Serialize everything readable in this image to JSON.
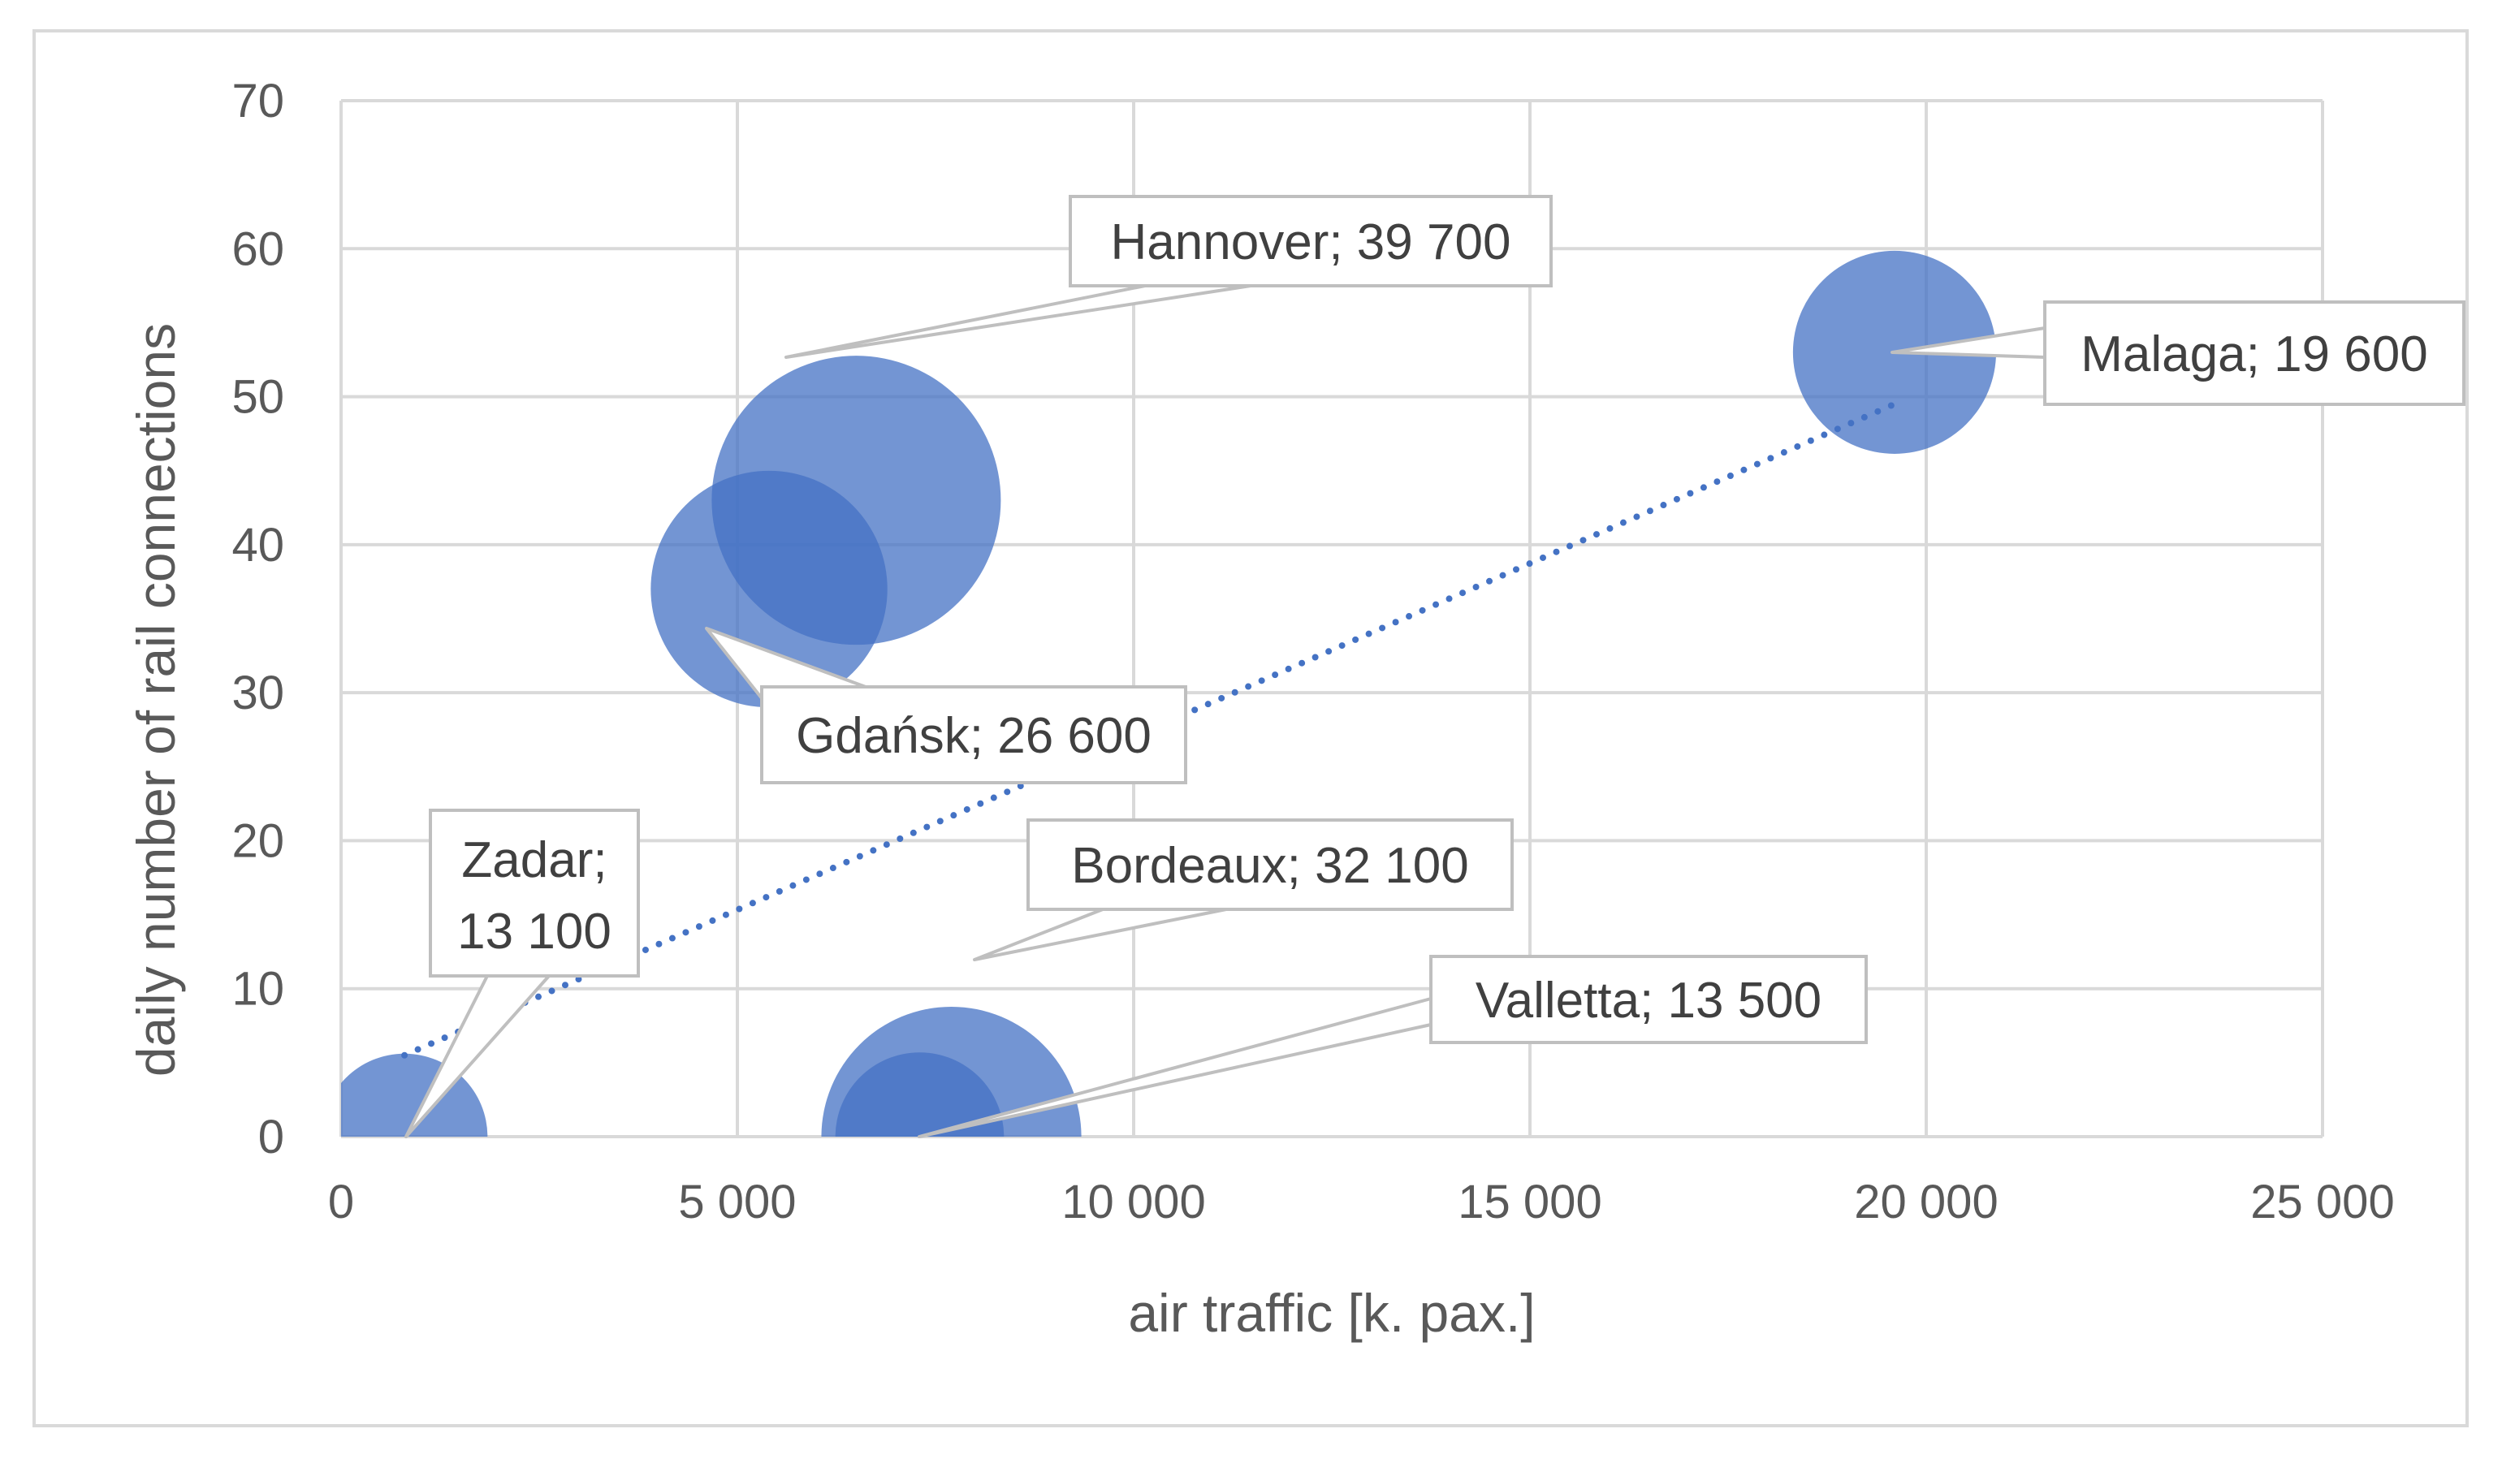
{
  "chart_data": {
    "type": "bubble",
    "xlabel": "air traffic [k. pax.]",
    "ylabel": "daily number of rail connections",
    "xlim": [
      0,
      25000
    ],
    "ylim": [
      0,
      70
    ],
    "x_ticks": [
      0,
      5000,
      10000,
      15000,
      20000,
      25000
    ],
    "x_tick_labels": [
      "0",
      "5 000",
      "10 000",
      "15 000",
      "20 000",
      "25 000"
    ],
    "y_ticks": [
      0,
      10,
      20,
      30,
      40,
      50,
      60,
      70
    ],
    "y_tick_labels": [
      "0",
      "10",
      "20",
      "30",
      "40",
      "50",
      "60",
      "70"
    ],
    "grid": true,
    "legend": "none",
    "bubble_color": "#4472c4",
    "trendline": {
      "style": "dotted",
      "color": "#4472c4",
      "x": [
        800,
        19600
      ],
      "y": [
        5.5,
        49.5
      ]
    },
    "points": [
      {
        "city": "Zadar",
        "x": 800,
        "y": 0,
        "size": 13100,
        "label": "Zadar;",
        "label_line2": "13 100"
      },
      {
        "city": "Valletta",
        "x": 7300,
        "y": 0,
        "size": 13500,
        "label": "Valletta; 13 500"
      },
      {
        "city": "Bordeaux",
        "x": 7700,
        "y": 0,
        "size": 32100,
        "label": "Bordeaux; 32 100"
      },
      {
        "city": "Gdańsk",
        "x": 5400,
        "y": 37,
        "size": 26600,
        "label": "Gdańsk; 26 600"
      },
      {
        "city": "Hannover",
        "x": 6500,
        "y": 43,
        "size": 39700,
        "label": "Hannover; 39 700"
      },
      {
        "city": "Malaga",
        "x": 19600,
        "y": 53,
        "size": 19600,
        "label": "Malaga; 19 600"
      }
    ]
  }
}
